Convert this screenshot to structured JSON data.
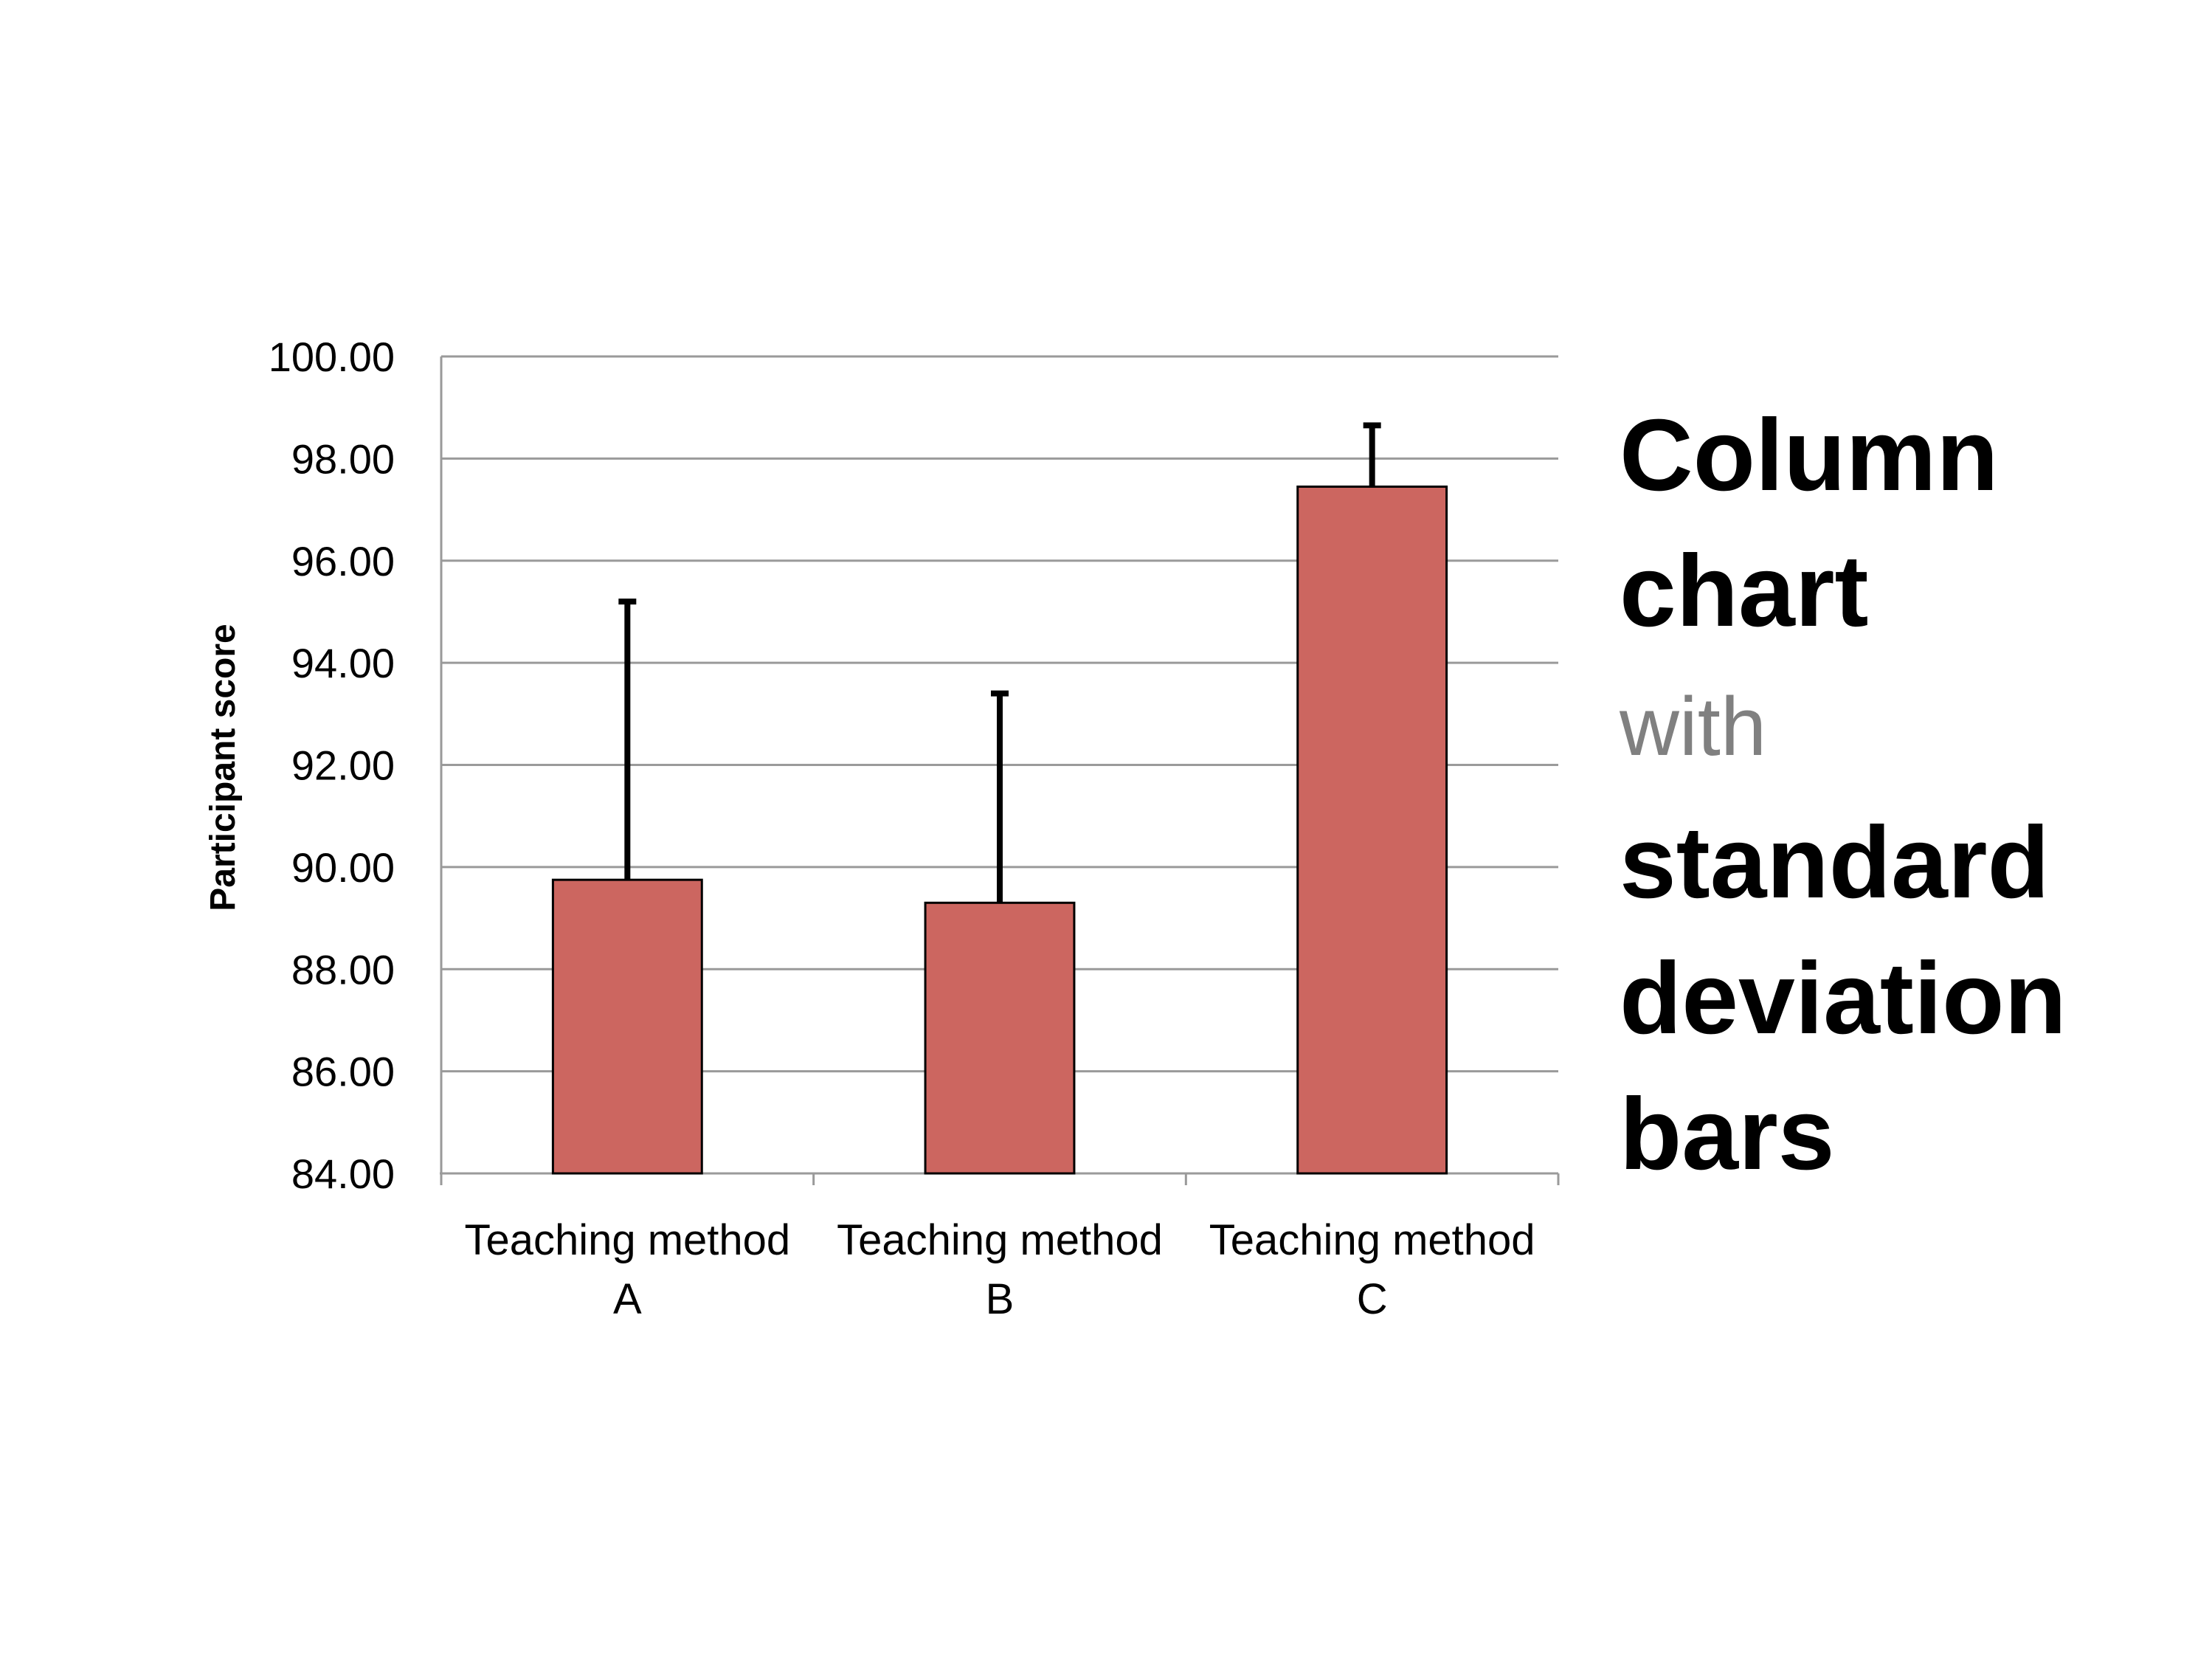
{
  "chart_data": {
    "type": "bar",
    "categories": [
      [
        "Teaching method",
        "A"
      ],
      [
        "Teaching method",
        "B"
      ],
      [
        "Teaching method",
        "C"
      ]
    ],
    "values": [
      89.75,
      89.3,
      97.45
    ],
    "error_bars": {
      "type": "standard deviation",
      "direction": "plus",
      "upper": [
        95.2,
        93.4,
        98.65
      ]
    },
    "ylabel": "Participant score",
    "xlabel": "",
    "ylim": [
      84,
      100
    ],
    "yticks": [
      "84.00",
      "86.00",
      "88.00",
      "90.00",
      "92.00",
      "94.00",
      "96.00",
      "98.00",
      "100.00"
    ],
    "grid": true,
    "legend": "none",
    "colors": {
      "bar_fill": "#cc6660",
      "bar_stroke": "#000000",
      "gridline": "#9a9a9a",
      "error_bar": "#000000"
    }
  },
  "side_title": {
    "line1": "Column",
    "line2": "chart",
    "line3": "with",
    "line4": "standard",
    "line5": "deviation",
    "line6": "bars"
  },
  "colors": {
    "title_muted": "#808080",
    "title_main": "#000000"
  }
}
